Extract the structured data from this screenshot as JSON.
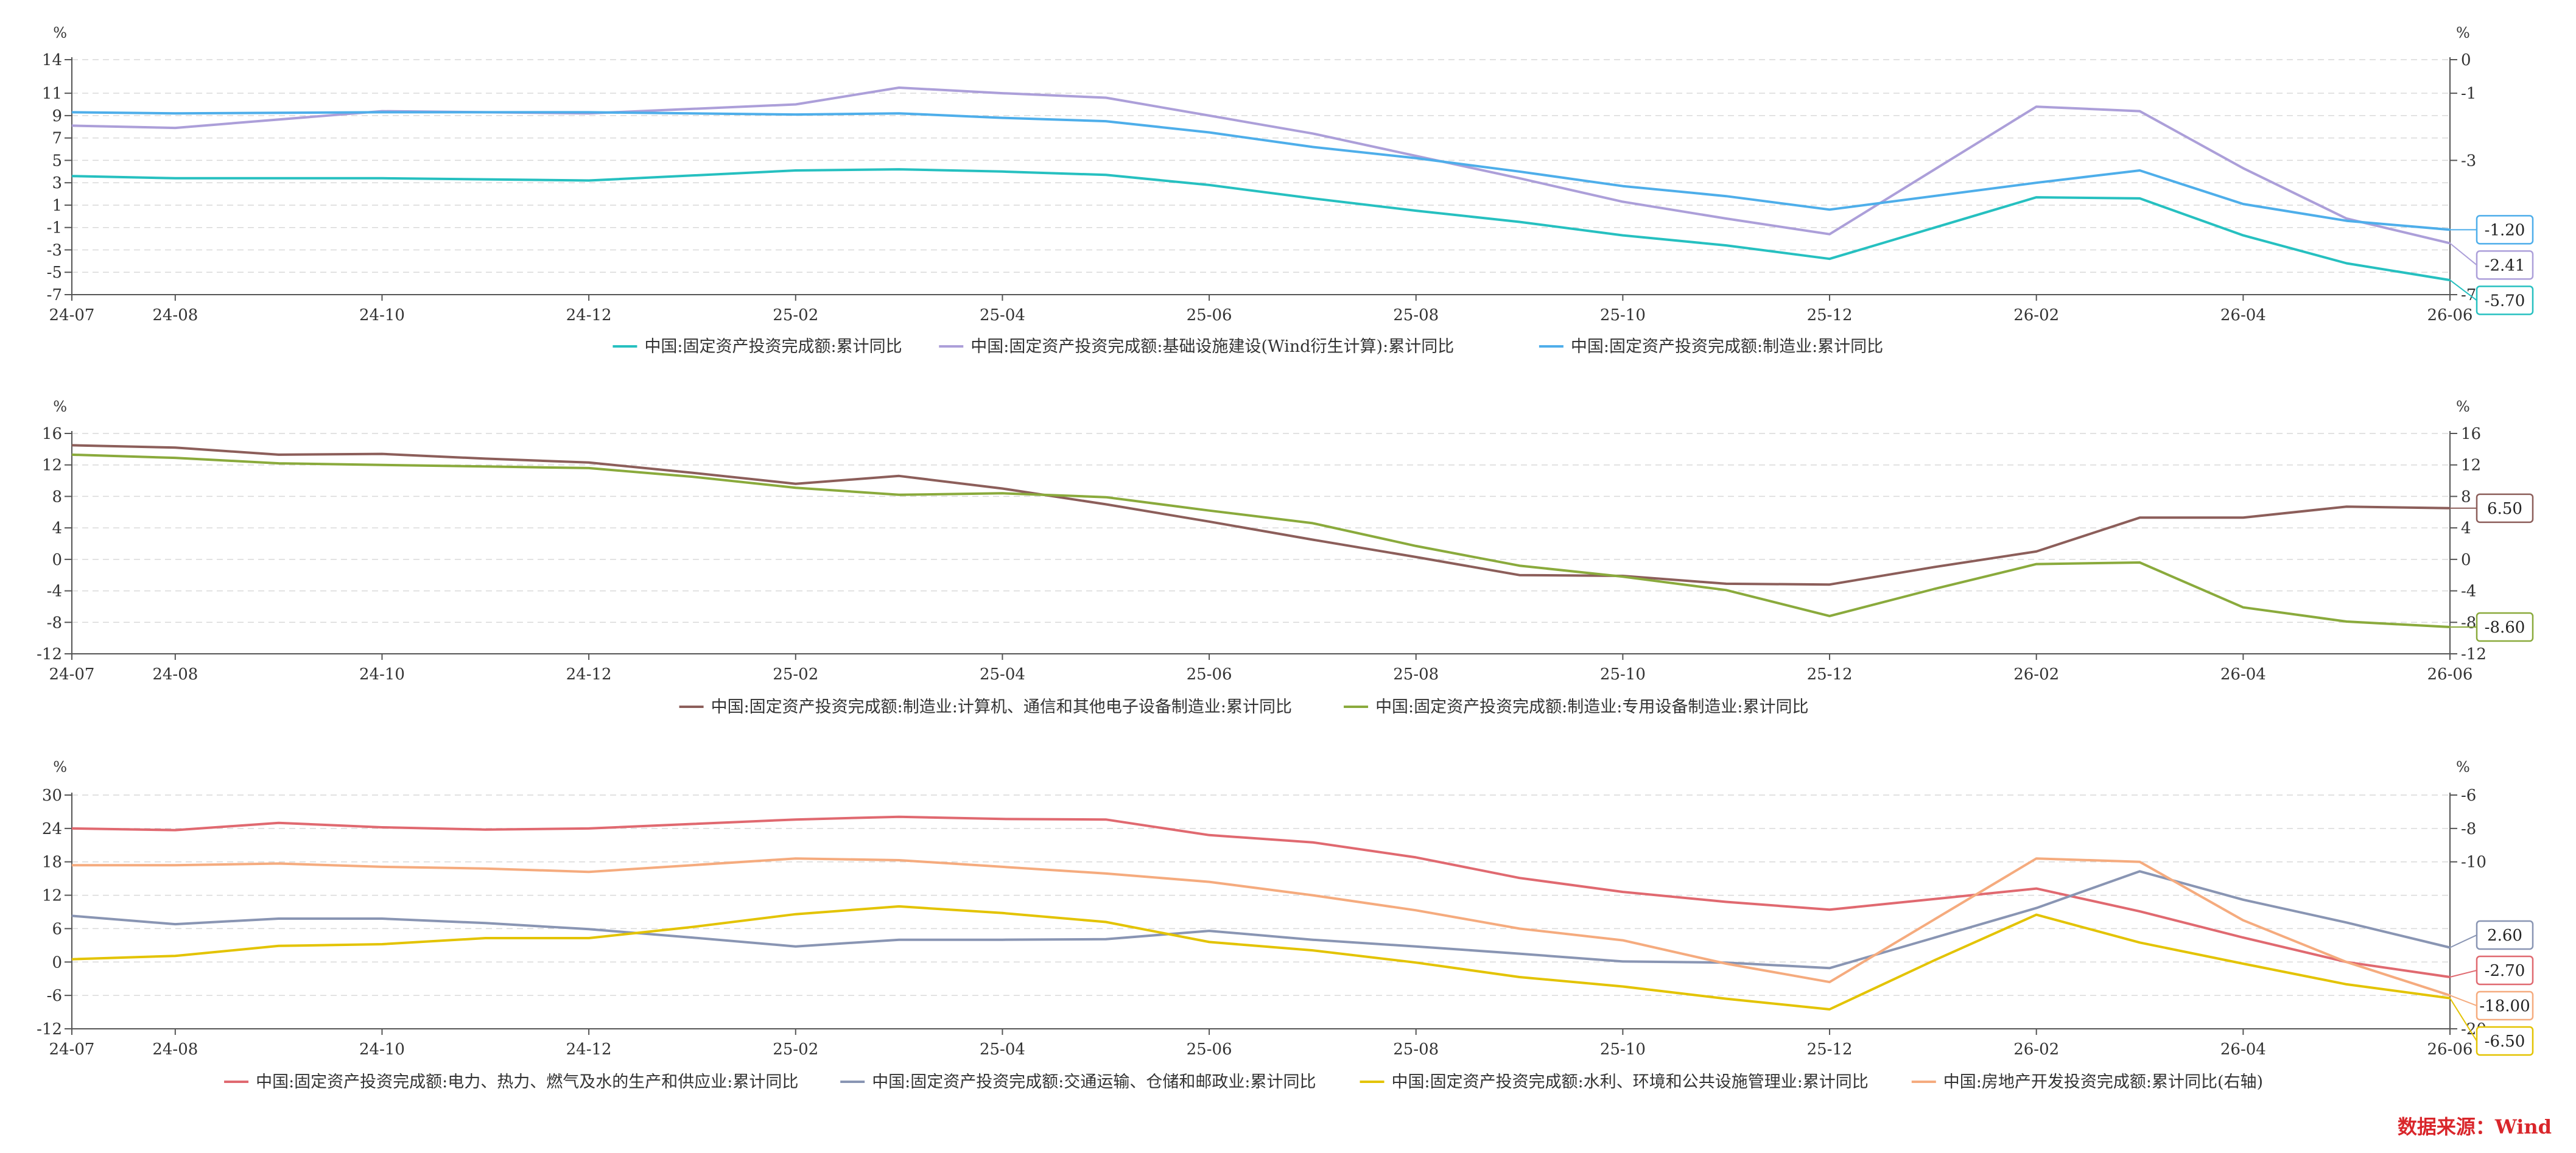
{
  "source": "数据来源：Wind",
  "x_ticks": [
    "24-07",
    "24-08",
    "24-10",
    "24-12",
    "25-02",
    "25-04",
    "25-06",
    "25-08",
    "25-10",
    "25-12",
    "26-02",
    "26-04",
    "26-06"
  ],
  "months": [
    "24-07",
    "24-08",
    "24-09",
    "24-10",
    "24-11",
    "24-12",
    "25-01",
    "25-02",
    "25-03",
    "25-04",
    "25-05",
    "25-06",
    "25-07",
    "25-08",
    "25-09",
    "25-10",
    "25-11",
    "25-12",
    "26-01",
    "26-02",
    "26-03",
    "26-04",
    "26-05",
    "26-06"
  ],
  "chart_data": [
    {
      "type": "line",
      "left_unit": "%",
      "right_unit": "%",
      "left_ylim": [
        -7,
        14
      ],
      "left_ticks": [
        14,
        11,
        9,
        7,
        5,
        3,
        1,
        -1,
        -3,
        -5,
        -7
      ],
      "right_ylim": [
        -7,
        0
      ],
      "right_ticks": [
        0,
        -1,
        -3,
        -7
      ],
      "grid": true,
      "legend_position": "bottom",
      "x": [
        "24-07",
        "24-08",
        "24-10",
        "24-12",
        "25-02",
        "25-03",
        "25-04",
        "25-05",
        "25-06",
        "25-07",
        "25-08",
        "25-09",
        "25-10",
        "25-11",
        "25-12",
        "26-02",
        "26-03",
        "26-04",
        "26-05",
        "26-06"
      ],
      "series": [
        {
          "name": "中国:固定资产投资完成额:累计同比",
          "color": "#26c0c0",
          "axis": "left",
          "end_label": "-5.70",
          "values": [
            3.6,
            3.4,
            3.4,
            3.2,
            4.1,
            4.2,
            4.0,
            3.7,
            2.8,
            1.6,
            0.5,
            -0.5,
            -1.7,
            -2.6,
            -3.8,
            1.7,
            1.6,
            -1.7,
            -4.2,
            -5.7
          ]
        },
        {
          "name": "中国:固定资产投资完成额:基础设施建设(Wind衍生计算):累计同比",
          "color": "#ac9fd9",
          "axis": "left",
          "end_label": "-2.41",
          "values": [
            8.1,
            7.9,
            9.4,
            9.2,
            10.0,
            11.5,
            11.0,
            10.6,
            9.0,
            7.4,
            5.4,
            3.4,
            1.3,
            -0.2,
            -1.6,
            9.8,
            9.4,
            4.3,
            -0.2,
            -2.41
          ]
        },
        {
          "name": "中国:固定资产投资完成额:制造业:累计同比",
          "color": "#4eaeea",
          "axis": "left",
          "end_label": "-1.20",
          "values": [
            9.3,
            9.2,
            9.3,
            9.3,
            9.1,
            9.2,
            8.8,
            8.5,
            7.5,
            6.2,
            5.2,
            4.0,
            2.7,
            1.8,
            0.6,
            3.0,
            4.1,
            1.1,
            -0.4,
            -1.2
          ]
        }
      ]
    },
    {
      "type": "line",
      "left_unit": "%",
      "right_unit": "%",
      "left_ylim": [
        -12,
        16
      ],
      "left_ticks": [
        16,
        12,
        8,
        4,
        0,
        -4,
        -8,
        -12
      ],
      "right_ylim": [
        -12,
        16
      ],
      "right_ticks": [
        16,
        12,
        8,
        4,
        0,
        -4,
        -8,
        -12
      ],
      "grid": true,
      "legend_position": "bottom",
      "x": [
        "24-07",
        "24-08",
        "24-09",
        "24-10",
        "24-11",
        "24-12",
        "25-01",
        "25-02",
        "25-03",
        "25-04",
        "25-05",
        "25-06",
        "25-07",
        "25-08",
        "25-09",
        "25-10",
        "25-11",
        "25-12",
        "26-01",
        "26-02",
        "26-03",
        "26-04",
        "26-05",
        "26-06"
      ],
      "series": [
        {
          "name": "中国:固定资产投资完成额:制造业:计算机、通信和其他电子设备制造业:累计同比",
          "color": "#8c5e5a",
          "axis": "left",
          "end_label": "6.50",
          "values": [
            14.5,
            14.2,
            13.3,
            13.4,
            12.8,
            12.3,
            11.0,
            9.6,
            10.6,
            9.0,
            7.0,
            4.8,
            2.5,
            0.3,
            -2.0,
            -2.1,
            -3.1,
            -3.2,
            -1.0,
            1.0,
            5.3,
            5.3,
            6.7,
            6.5
          ]
        },
        {
          "name": "中国:固定资产投资完成额:制造业:专用设备制造业:累计同比",
          "color": "#8aaa3c",
          "axis": "left",
          "end_label": "-8.60",
          "values": [
            13.3,
            12.9,
            12.2,
            12.0,
            11.8,
            11.6,
            10.5,
            9.1,
            8.2,
            8.4,
            7.9,
            6.2,
            4.6,
            1.7,
            -0.8,
            -2.2,
            -3.9,
            -7.2,
            -3.8,
            -0.6,
            -0.4,
            -6.1,
            -7.9,
            -8.6
          ]
        }
      ]
    },
    {
      "type": "line",
      "left_unit": "%",
      "right_unit": "%",
      "left_ylim": [
        -12,
        30
      ],
      "left_ticks": [
        30,
        24,
        18,
        12,
        6,
        0,
        -6,
        -12
      ],
      "right_ylim": [
        -20,
        -6
      ],
      "right_ticks": [
        -6,
        -8,
        -10,
        -20
      ],
      "grid": true,
      "legend_position": "bottom",
      "x": [
        "24-07",
        "24-08",
        "24-09",
        "24-10",
        "24-11",
        "24-12",
        "25-01",
        "25-02",
        "25-03",
        "25-04",
        "25-05",
        "25-06",
        "25-07",
        "25-08",
        "25-09",
        "25-10",
        "25-11",
        "25-12",
        "26-01",
        "26-02",
        "26-03",
        "26-04",
        "26-05",
        "26-06"
      ],
      "series": [
        {
          "name": "中国:固定资产投资完成额:电力、热力、燃气及水的生产和供应业:累计同比",
          "color": "#e06970",
          "axis": "left",
          "end_label": "-2.70",
          "values": [
            24.0,
            23.7,
            25.0,
            24.2,
            23.8,
            24.0,
            24.8,
            25.6,
            26.1,
            25.7,
            25.6,
            22.8,
            21.5,
            18.8,
            15.1,
            12.6,
            10.8,
            9.4,
            11.3,
            13.2,
            9.1,
            4.4,
            0.0,
            -2.7
          ]
        },
        {
          "name": "中国:固定资产投资完成额:交通运输、仓储和邮政业:累计同比",
          "color": "#8995b3",
          "axis": "left",
          "end_label": "2.60",
          "values": [
            8.3,
            6.8,
            7.8,
            7.8,
            7.0,
            5.9,
            4.4,
            2.8,
            4.0,
            4.0,
            4.1,
            5.6,
            4.0,
            2.8,
            1.5,
            0.1,
            -0.1,
            -1.1,
            4.3,
            9.7,
            16.3,
            11.2,
            7.1,
            2.6
          ]
        },
        {
          "name": "中国:固定资产投资完成额:水利、环境和公共设施管理业:累计同比",
          "color": "#e3c300",
          "axis": "left",
          "end_label": "-6.50",
          "values": [
            0.5,
            1.1,
            2.9,
            3.2,
            4.3,
            4.3,
            6.3,
            8.6,
            10.0,
            8.8,
            7.2,
            3.6,
            2.1,
            -0.1,
            -2.7,
            -4.4,
            -6.6,
            -8.5,
            0.2,
            8.5,
            3.5,
            -0.3,
            -4.0,
            -6.5
          ]
        },
        {
          "name": "中国:房地产开发投资完成额:累计同比(右轴)",
          "color": "#f5ab7e",
          "axis": "right",
          "end_label": "-18.00",
          "values": [
            -10.2,
            -10.2,
            -10.1,
            -10.3,
            -10.4,
            -10.6,
            -10.2,
            -9.8,
            -9.9,
            -10.3,
            -10.7,
            -11.2,
            -12.0,
            -12.9,
            -14.0,
            -14.7,
            -16.1,
            -17.2,
            -13.5,
            -9.8,
            -10.0,
            -13.5,
            -16.0,
            -18.0
          ]
        }
      ]
    }
  ]
}
